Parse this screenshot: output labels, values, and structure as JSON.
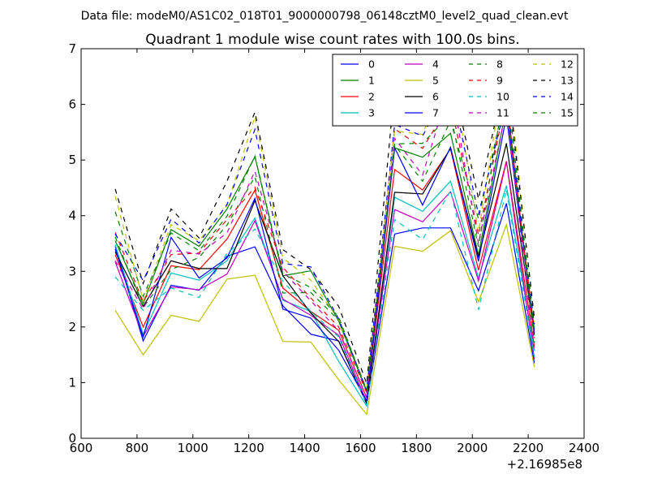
{
  "figure": {
    "suptitle": "Data file: modeM0/AS1C02_018T01_9000000798_06148cztM0_level2_quad_clean.evt"
  },
  "chart_data": {
    "type": "line",
    "title": "Quadrant 1 module wise count rates with 100.0s bins.",
    "xlabel": "",
    "ylabel": "",
    "x_offset_label": "+2.16985e8",
    "xlim": [
      600,
      2400
    ],
    "ylim": [
      0,
      7
    ],
    "xticks": [
      600,
      800,
      1000,
      1200,
      1400,
      1600,
      1800,
      2000,
      2200,
      2400
    ],
    "yticks": [
      0,
      1,
      2,
      3,
      4,
      5,
      6,
      7
    ],
    "grid": false,
    "legend": {
      "placement": "top-right",
      "columns": 4
    },
    "x": [
      722,
      822,
      922,
      1022,
      1122,
      1222,
      1322,
      1422,
      1522,
      1622,
      1722,
      1822,
      1922,
      2022,
      2122,
      2222
    ],
    "series": [
      {
        "name": "0",
        "color": "#0000ff",
        "dash": "solid",
        "values": [
          3.45,
          1.75,
          2.75,
          2.66,
          3.27,
          3.44,
          2.38,
          1.87,
          1.75,
          0.62,
          3.67,
          3.78,
          3.78,
          2.65,
          4.22,
          1.35
        ]
      },
      {
        "name": "1",
        "color": "#008000",
        "dash": "solid",
        "values": [
          3.55,
          2.42,
          3.75,
          3.45,
          4.12,
          5.06,
          2.92,
          3.01,
          2.1,
          0.85,
          5.22,
          5.05,
          5.48,
          3.29,
          5.97,
          1.95
        ]
      },
      {
        "name": "2",
        "color": "#ff0000",
        "dash": "solid",
        "values": [
          3.3,
          2.0,
          3.1,
          3.03,
          3.58,
          4.46,
          2.7,
          2.28,
          1.94,
          0.73,
          4.83,
          4.46,
          5.2,
          3.02,
          4.98,
          1.65
        ]
      },
      {
        "name": "3",
        "color": "#00bfbf",
        "dash": "solid",
        "values": [
          3.48,
          1.87,
          2.97,
          2.84,
          3.19,
          3.96,
          2.48,
          2.28,
          1.38,
          0.58,
          4.33,
          4.08,
          4.62,
          2.88,
          4.54,
          1.57
        ]
      },
      {
        "name": "4",
        "color": "#bf00bf",
        "dash": "solid",
        "values": [
          3.17,
          1.83,
          2.72,
          2.67,
          2.95,
          3.91,
          2.5,
          2.21,
          1.85,
          0.66,
          4.11,
          3.89,
          4.43,
          2.83,
          4.97,
          1.42
        ]
      },
      {
        "name": "5",
        "color": "#bfbf00",
        "dash": "solid",
        "values": [
          2.3,
          1.5,
          2.21,
          2.1,
          2.86,
          2.93,
          1.74,
          1.73,
          1.05,
          0.43,
          3.45,
          3.36,
          3.73,
          2.45,
          3.84,
          1.28
        ]
      },
      {
        "name": "6",
        "color": "#000000",
        "dash": "solid",
        "values": [
          3.35,
          2.37,
          3.19,
          3.05,
          3.05,
          4.27,
          2.92,
          2.25,
          1.74,
          0.62,
          4.42,
          4.39,
          5.21,
          3.25,
          5.3,
          1.86
        ]
      },
      {
        "name": "7",
        "color": "#0000ff",
        "dash": "solid",
        "values": [
          3.4,
          1.82,
          3.61,
          2.88,
          3.24,
          4.31,
          2.32,
          2.16,
          1.58,
          0.67,
          5.22,
          4.19,
          5.23,
          3.18,
          5.79,
          1.9
        ]
      },
      {
        "name": "8",
        "color": "#008000",
        "dash": "dashed",
        "values": [
          3.62,
          2.35,
          3.03,
          3.25,
          3.83,
          4.7,
          2.61,
          2.62,
          2.12,
          0.83,
          5.27,
          4.62,
          5.71,
          3.94,
          6.25,
          1.72
        ]
      },
      {
        "name": "9",
        "color": "#ff0000",
        "dash": "dashed",
        "values": [
          3.7,
          2.45,
          3.3,
          3.33,
          3.93,
          4.51,
          3.07,
          2.52,
          2.0,
          0.82,
          5.56,
          5.21,
          6.03,
          3.65,
          6.14,
          1.8
        ]
      },
      {
        "name": "10",
        "color": "#00bfbf",
        "dash": "dashed",
        "values": [
          2.9,
          2.3,
          2.7,
          2.53,
          3.32,
          3.76,
          2.82,
          2.28,
          1.82,
          0.6,
          3.93,
          3.57,
          4.45,
          2.31,
          4.47,
          1.46
        ]
      },
      {
        "name": "11",
        "color": "#bf00bf",
        "dash": "dashed",
        "values": [
          3.19,
          2.32,
          3.38,
          3.31,
          3.69,
          4.8,
          3.0,
          2.47,
          1.93,
          0.72,
          5.39,
          4.73,
          6.37,
          3.5,
          5.93,
          1.56
        ]
      },
      {
        "name": "12",
        "color": "#bfbf00",
        "dash": "dashed",
        "values": [
          4.35,
          2.48,
          3.84,
          3.55,
          4.18,
          5.78,
          3.24,
          2.84,
          2.13,
          0.89,
          5.52,
          5.46,
          6.8,
          3.7,
          6.85,
          2.09
        ]
      },
      {
        "name": "13",
        "color": "#000000",
        "dash": "dashed",
        "values": [
          4.48,
          2.78,
          4.12,
          3.6,
          4.62,
          5.86,
          3.39,
          3.03,
          2.37,
          0.98,
          6.3,
          5.8,
          6.65,
          4.3,
          6.61,
          2.16
        ]
      },
      {
        "name": "14",
        "color": "#0000ff",
        "dash": "dashed",
        "values": [
          3.67,
          2.83,
          3.94,
          3.51,
          4.2,
          5.55,
          3.14,
          3.08,
          2.14,
          0.86,
          5.64,
          5.43,
          6.4,
          4.02,
          6.06,
          2.05
        ]
      },
      {
        "name": "15",
        "color": "#008000",
        "dash": "dashed",
        "values": [
          4.07,
          2.55,
          3.69,
          3.37,
          3.99,
          5.07,
          2.95,
          2.71,
          2.18,
          0.85,
          5.29,
          5.3,
          5.82,
          3.44,
          6.45,
          1.91
        ]
      }
    ]
  }
}
